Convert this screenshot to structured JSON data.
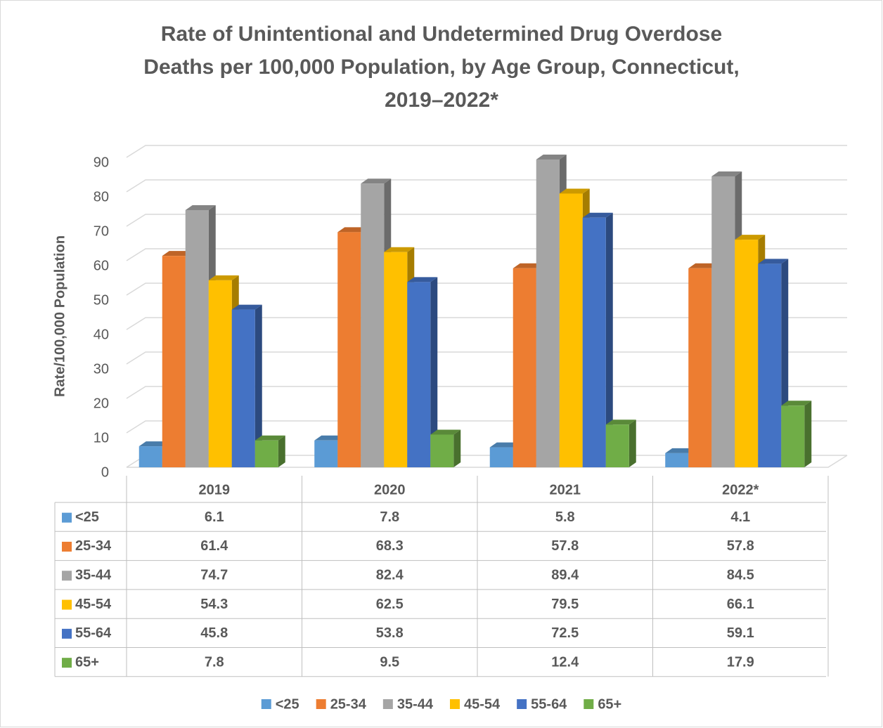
{
  "chart_data": {
    "type": "bar3d",
    "title": [
      "Rate of Unintentional and Undetermined Drug Overdose",
      "Deaths per 100,000 Population, by Age Group, Connecticut,",
      "2019–2022*"
    ],
    "ylabel": "Rate/100,000 Population",
    "categories": [
      "2019",
      "2020",
      "2021",
      "2022*"
    ],
    "series": [
      {
        "name": "<25",
        "color": "#5b9bd5",
        "values": [
          6.1,
          7.8,
          5.8,
          4.1
        ]
      },
      {
        "name": "25-34",
        "color": "#ed7d31",
        "values": [
          61.4,
          68.3,
          57.8,
          57.8
        ]
      },
      {
        "name": "35-44",
        "color": "#a5a5a5",
        "values": [
          74.7,
          82.4,
          89.4,
          84.5
        ]
      },
      {
        "name": "45-54",
        "color": "#ffc000",
        "values": [
          54.3,
          62.5,
          79.5,
          66.1
        ]
      },
      {
        "name": "55-64",
        "color": "#4472c4",
        "values": [
          45.8,
          53.8,
          72.5,
          59.1
        ]
      },
      {
        "name": "65+",
        "color": "#70ad47",
        "values": [
          7.8,
          9.5,
          12.4,
          17.9
        ]
      }
    ],
    "ylim": [
      0,
      90
    ],
    "yticks": [
      0,
      10,
      20,
      30,
      40,
      50,
      60,
      70,
      80,
      90
    ],
    "grid": true,
    "data_table": true,
    "legend": "bottom"
  }
}
